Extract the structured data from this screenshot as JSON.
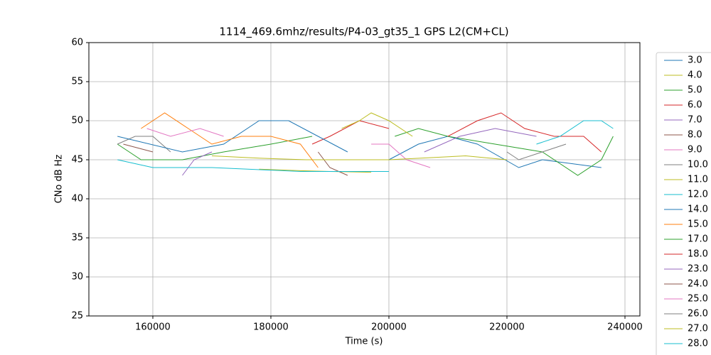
{
  "chart_data": {
    "type": "line",
    "title": "1114_469.6mhz/results/P4-03_gt35_1 GPS L2(CM+CL)",
    "x_label": "Time (s)",
    "y_label": "CNo dB Hz",
    "xlim": [
      149160,
      242530
    ],
    "xticks": [
      160000,
      180000,
      200000,
      220000,
      240000
    ],
    "ylim": [
      25,
      60
    ],
    "yticks": [
      25,
      30,
      35,
      40,
      45,
      50,
      55,
      60
    ],
    "grid": true,
    "legend": "outside-right",
    "series": [
      {
        "name": "3.0",
        "color": "#1f77b4",
        "x": [
          200000,
          205000,
          210000,
          215000,
          222000,
          226000,
          236000
        ],
        "values": [
          45,
          47,
          48,
          47,
          44,
          45,
          44
        ]
      },
      {
        "name": "4.0",
        "color": "#bcbd22",
        "x": [
          178000,
          185000,
          190000,
          197000
        ],
        "values": [
          43.8,
          43.6,
          43.5,
          43.4
        ]
      },
      {
        "name": "5.0",
        "color": "#2ca02c",
        "x": [
          154000,
          158000,
          165000,
          172000,
          180000,
          187000
        ],
        "values": [
          47,
          45,
          45,
          46,
          47,
          48
        ]
      },
      {
        "name": "6.0",
        "color": "#d62728",
        "x": [
          187000,
          190000,
          195000,
          200000
        ],
        "values": [
          47,
          48,
          50,
          49
        ]
      },
      {
        "name": "7.0",
        "color": "#9467bd",
        "x": [
          165000,
          167000,
          170000
        ],
        "values": [
          43,
          45,
          46
        ]
      },
      {
        "name": "8.0",
        "color": "#8c564b",
        "x": [
          188000,
          190000,
          193000
        ],
        "values": [
          46,
          44,
          43
        ]
      },
      {
        "name": "9.0",
        "color": "#e377c2",
        "x": [
          197000,
          200000,
          203000,
          207000
        ],
        "values": [
          47,
          47,
          45,
          44
        ]
      },
      {
        "name": "10.0",
        "color": "#7f7f7f",
        "x": [
          154000,
          157000,
          160000,
          163000
        ],
        "values": [
          47,
          48,
          48,
          46
        ]
      },
      {
        "name": "11.0",
        "color": "#bcbd22",
        "x": [
          170000,
          178000,
          186000,
          200000,
          213000,
          220000
        ],
        "values": [
          45.5,
          45.2,
          45,
          45,
          45.5,
          45
        ]
      },
      {
        "name": "12.0",
        "color": "#17becf",
        "x": [
          154000,
          160000,
          170000,
          185000,
          200000
        ],
        "values": [
          45,
          44,
          44,
          43.5,
          43.5
        ]
      },
      {
        "name": "14.0",
        "color": "#1f77b4",
        "x": [
          154000,
          165000,
          172000,
          178000,
          183000,
          188000,
          193000
        ],
        "values": [
          48,
          46,
          47,
          50,
          50,
          48,
          46
        ]
      },
      {
        "name": "15.0",
        "color": "#ff7f0e",
        "x": [
          158000,
          162000,
          166000,
          170000,
          175000,
          180000,
          185000,
          188000
        ],
        "values": [
          49,
          51,
          49,
          47,
          48,
          48,
          47,
          44
        ]
      },
      {
        "name": "17.0",
        "color": "#2ca02c",
        "x": [
          201000,
          205000,
          210000,
          226000,
          232000,
          236000,
          238000
        ],
        "values": [
          48,
          49,
          48,
          46,
          43,
          45,
          48
        ]
      },
      {
        "name": "18.0",
        "color": "#d62728",
        "x": [
          210000,
          215000,
          219000,
          223000,
          228000,
          233000,
          236000
        ],
        "values": [
          48,
          50,
          51,
          49,
          48,
          48,
          46
        ]
      },
      {
        "name": "23.0",
        "color": "#9467bd",
        "x": [
          206000,
          212000,
          218000,
          225000
        ],
        "values": [
          46,
          48,
          49,
          48
        ]
      },
      {
        "name": "24.0",
        "color": "#8c564b",
        "x": [
          155000,
          160000
        ],
        "values": [
          47,
          46
        ]
      },
      {
        "name": "25.0",
        "color": "#e377c2",
        "x": [
          159000,
          163000,
          168000,
          172000
        ],
        "values": [
          49,
          48,
          49,
          48
        ]
      },
      {
        "name": "26.0",
        "color": "#7f7f7f",
        "x": [
          220000,
          222000,
          226000,
          230000
        ],
        "values": [
          46,
          45,
          46,
          47
        ]
      },
      {
        "name": "27.0",
        "color": "#bcbd22",
        "x": [
          192000,
          195000,
          197000,
          200000,
          204000
        ],
        "values": [
          49,
          50,
          51,
          50,
          48
        ]
      },
      {
        "name": "28.0",
        "color": "#17becf",
        "x": [
          225000,
          229000,
          233000,
          236000,
          238000
        ],
        "values": [
          47,
          48,
          50,
          50,
          49
        ]
      }
    ]
  }
}
